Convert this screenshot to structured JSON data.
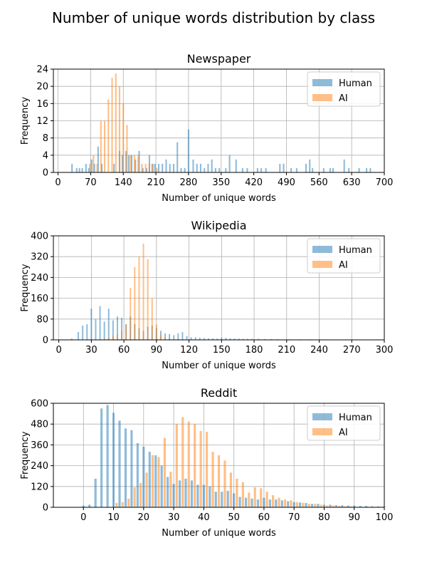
{
  "suptitle": "Number of unique words distribution by class",
  "chart_data": [
    {
      "type": "bar",
      "title": "Newspaper",
      "xlabel": "Number of unique words",
      "ylabel": "Frequency",
      "xlim": [
        -10,
        700
      ],
      "ylim": [
        0,
        24
      ],
      "xticks": [
        0,
        70,
        140,
        210,
        280,
        350,
        420,
        490,
        560,
        630,
        700
      ],
      "yticks": [
        0,
        4,
        8,
        12,
        16,
        20,
        24
      ],
      "bar_width": 3.2,
      "grid": true,
      "legend": "top-right",
      "series": [
        {
          "name": "Human",
          "color": "#1f77b4",
          "x": [
            30,
            40,
            46,
            52,
            60,
            66,
            72,
            78,
            86,
            94,
            120,
            132,
            138,
            146,
            152,
            158,
            166,
            174,
            182,
            190,
            196,
            202,
            208,
            216,
            224,
            232,
            240,
            248,
            256,
            264,
            272,
            280,
            290,
            298,
            306,
            314,
            322,
            330,
            338,
            346,
            360,
            368,
            382,
            396,
            406,
            428,
            436,
            446,
            476,
            484,
            500,
            512,
            532,
            540,
            546,
            570,
            584,
            590,
            614,
            624,
            646,
            662,
            670
          ],
          "values": [
            2,
            1,
            1,
            1,
            2,
            1,
            3,
            2,
            6,
            2,
            2,
            5,
            4,
            5,
            4,
            4,
            3,
            5,
            1,
            1,
            4,
            2,
            2,
            2,
            2,
            3,
            2,
            2,
            7,
            1,
            1,
            10,
            3,
            2,
            2,
            1,
            2,
            3,
            1,
            1,
            1,
            4,
            3,
            1,
            1,
            1,
            1,
            1,
            2,
            2,
            1,
            1,
            2,
            3,
            1,
            1,
            1,
            1,
            3,
            1,
            1,
            1,
            1
          ]
        },
        {
          "name": "AI",
          "color": "#ff7f0e",
          "x": [
            68,
            76,
            84,
            92,
            100,
            108,
            116,
            124,
            132,
            140,
            148,
            156,
            164,
            172,
            180,
            188,
            196,
            204,
            212
          ],
          "values": [
            2,
            4,
            2,
            12,
            12,
            17,
            22,
            23,
            20,
            16,
            11,
            4,
            4,
            4,
            2,
            2,
            2,
            2,
            1
          ]
        }
      ]
    },
    {
      "type": "bar",
      "title": "Wikipedia",
      "xlabel": "Number of unique words",
      "ylabel": "Frequency",
      "xlim": [
        -5,
        300
      ],
      "ylim": [
        0,
        400
      ],
      "xticks": [
        0,
        30,
        60,
        90,
        120,
        150,
        180,
        210,
        240,
        270,
        300
      ],
      "yticks": [
        0,
        80,
        160,
        240,
        320,
        400
      ],
      "bar_width": 1.3,
      "grid": true,
      "legend": "top-right",
      "series": [
        {
          "name": "Human",
          "color": "#1f77b4",
          "x": [
            12,
            18,
            22,
            26,
            30,
            34,
            38,
            42,
            46,
            50,
            54,
            58,
            62,
            66,
            70,
            74,
            78,
            82,
            86,
            90,
            94,
            98,
            102,
            106,
            110,
            114,
            118,
            122,
            126,
            130,
            134,
            138,
            142,
            146,
            150,
            154,
            158,
            162,
            166,
            170,
            174,
            178,
            184,
            190,
            196,
            202,
            212,
            222,
            232,
            242,
            252,
            262
          ],
          "values": [
            5,
            30,
            55,
            60,
            120,
            80,
            130,
            70,
            120,
            75,
            90,
            85,
            60,
            90,
            60,
            45,
            35,
            50,
            55,
            45,
            35,
            25,
            22,
            18,
            25,
            30,
            15,
            10,
            10,
            8,
            7,
            6,
            6,
            5,
            8,
            8,
            6,
            5,
            5,
            4,
            4,
            4,
            4,
            3,
            3,
            3,
            2,
            2,
            2,
            2,
            1,
            1
          ]
        },
        {
          "name": "AI",
          "color": "#ff7f0e",
          "x": [
            38,
            42,
            46,
            50,
            54,
            58,
            62,
            66,
            70,
            74,
            78,
            82,
            86,
            90,
            94,
            98,
            102,
            106,
            110,
            114,
            120,
            126,
            132,
            140,
            150,
            160,
            170,
            180,
            200,
            240
          ],
          "values": [
            2,
            5,
            8,
            15,
            20,
            35,
            60,
            200,
            280,
            320,
            370,
            310,
            160,
            60,
            20,
            10,
            5,
            4,
            3,
            3,
            2,
            2,
            1,
            1,
            1,
            1,
            1,
            1,
            1,
            1
          ]
        }
      ]
    },
    {
      "type": "bar",
      "title": "Reddit",
      "xlabel": "Number of unique words",
      "ylabel": "Frequency",
      "xlim": [
        -10,
        100
      ],
      "ylim": [
        0,
        600
      ],
      "xticks": [
        0,
        10,
        20,
        30,
        40,
        50,
        60,
        70,
        80,
        90,
        100
      ],
      "yticks": [
        0,
        120,
        240,
        360,
        480,
        600
      ],
      "bar_width": 0.75,
      "grid": true,
      "legend": "top-right",
      "series": [
        {
          "name": "Human",
          "color": "#1f77b4",
          "x": [
            0,
            2,
            4,
            6,
            8,
            10,
            12,
            14,
            16,
            18,
            20,
            22,
            24,
            26,
            28,
            30,
            32,
            34,
            36,
            38,
            40,
            42,
            44,
            46,
            48,
            50,
            52,
            54,
            56,
            58,
            60,
            62,
            64,
            66,
            68,
            70,
            72,
            74,
            76,
            78,
            80,
            82,
            84,
            86,
            88,
            90,
            92,
            94,
            96,
            98,
            100
          ],
          "values": [
            10,
            15,
            165,
            570,
            590,
            545,
            500,
            455,
            445,
            370,
            350,
            320,
            300,
            240,
            175,
            135,
            155,
            165,
            155,
            130,
            130,
            120,
            90,
            90,
            95,
            80,
            60,
            55,
            50,
            45,
            55,
            45,
            45,
            40,
            35,
            30,
            28,
            25,
            20,
            20,
            15,
            15,
            12,
            12,
            10,
            10,
            8,
            8,
            6,
            5,
            5
          ]
        },
        {
          "name": "AI",
          "color": "#ff7f0e",
          "x": [
            11,
            13,
            15,
            17,
            19,
            21,
            23,
            25,
            27,
            29,
            31,
            33,
            35,
            37,
            39,
            41,
            43,
            45,
            47,
            49,
            51,
            53,
            55,
            57,
            59,
            61,
            63,
            65,
            67,
            69,
            71,
            73,
            75,
            77,
            79,
            81,
            83,
            85,
            87,
            89
          ],
          "values": [
            25,
            30,
            50,
            115,
            140,
            200,
            300,
            290,
            400,
            205,
            480,
            520,
            495,
            480,
            440,
            435,
            320,
            300,
            270,
            200,
            165,
            145,
            85,
            115,
            110,
            90,
            70,
            55,
            45,
            40,
            30,
            25,
            20,
            20,
            15,
            10,
            10,
            8,
            5,
            5
          ]
        }
      ]
    }
  ]
}
